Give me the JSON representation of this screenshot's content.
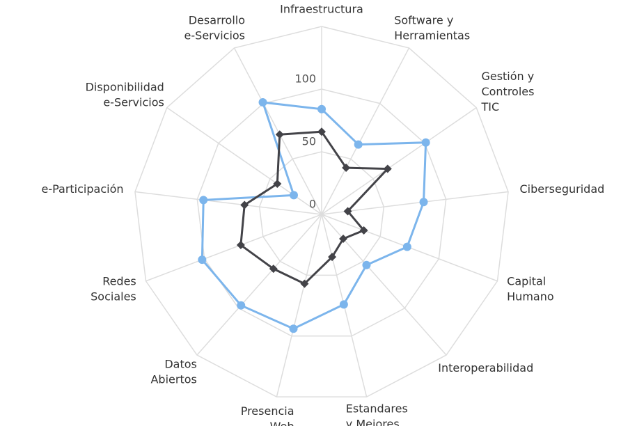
{
  "chart_data": {
    "type": "radar",
    "categories": [
      "Infraestructura",
      "Software y\nHerramientas",
      "Gestión y\nControles\nTIC",
      "Ciberseguridad",
      "Capital\nHumano",
      "Interoperabilidad",
      "Estandares\ny Mejores\nPrácticas",
      "Presencia\nWeb",
      "Datos\nAbiertos",
      "Redes\nSociales",
      "e-Participación",
      "Disponibilidad\ne-Servicios",
      "Desarrollo\ne-Servicios"
    ],
    "series": [
      {
        "color": "#7cb5ec",
        "marker": "circle",
        "values": [
          84,
          63,
          101,
          82,
          73,
          54,
          74,
          94,
          97,
          102,
          95,
          27,
          101
        ]
      },
      {
        "color": "#434348",
        "marker": "diamond",
        "values": [
          66,
          42,
          64,
          21,
          36,
          26,
          35,
          57,
          58,
          69,
          62,
          43,
          72
        ]
      }
    ],
    "ylim": [
      0,
      150
    ],
    "yticks": [
      0,
      50,
      100
    ],
    "grid": true
  }
}
